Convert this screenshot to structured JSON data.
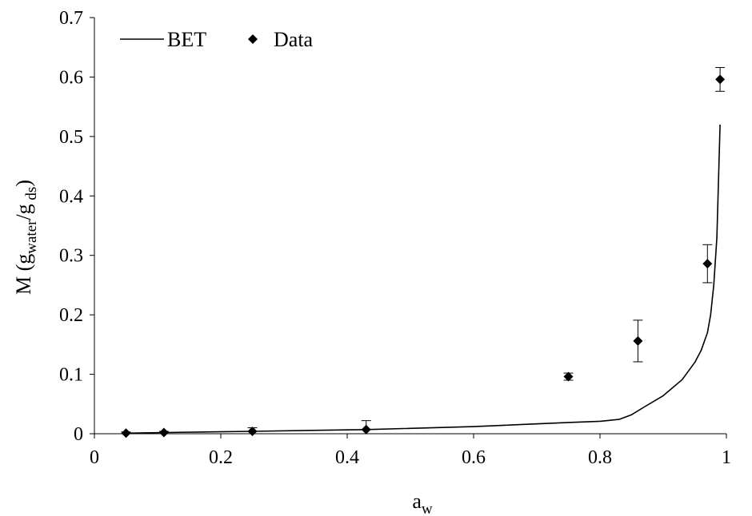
{
  "chart_data": {
    "type": "scatter",
    "title": "",
    "xlabel": {
      "base": "a",
      "sub": "w"
    },
    "ylabel": {
      "prefix": "M (g",
      "sub1": "water",
      "mid": "/g",
      "sub2": " ds",
      "suffix": ")"
    },
    "xlim": [
      0,
      1
    ],
    "ylim": [
      0,
      0.7
    ],
    "x_ticks": [
      "0",
      "0.2",
      "0.4",
      "0.6",
      "0.8",
      "1"
    ],
    "y_ticks": [
      "0",
      "0.1",
      "0.2",
      "0.3",
      "0.4",
      "0.5",
      "0.6",
      "0.7"
    ],
    "grid": false,
    "legend_position": "top-left",
    "series": [
      {
        "name": "BET",
        "kind": "line",
        "color": "#000000",
        "x": [
          0.05,
          0.11,
          0.25,
          0.43,
          0.6,
          0.75,
          0.8,
          0.83,
          0.85,
          0.87,
          0.9,
          0.93,
          0.95,
          0.96,
          0.97,
          0.975,
          0.98,
          0.985,
          0.99
        ],
        "y": [
          0.001,
          0.002,
          0.004,
          0.007,
          0.012,
          0.019,
          0.021,
          0.024,
          0.032,
          0.045,
          0.064,
          0.091,
          0.12,
          0.14,
          0.17,
          0.2,
          0.25,
          0.33,
          0.52
        ]
      },
      {
        "name": "Data",
        "kind": "scatter",
        "marker": "diamond",
        "color": "#000000",
        "x": [
          0.05,
          0.11,
          0.25,
          0.43,
          0.75,
          0.86,
          0.97,
          0.99
        ],
        "y": [
          0.001,
          0.002,
          0.004,
          0.007,
          0.096,
          0.156,
          0.286,
          0.596
        ],
        "err": [
          0.002,
          0.002,
          0.006,
          0.015,
          0.006,
          0.035,
          0.032,
          0.02
        ]
      }
    ]
  }
}
